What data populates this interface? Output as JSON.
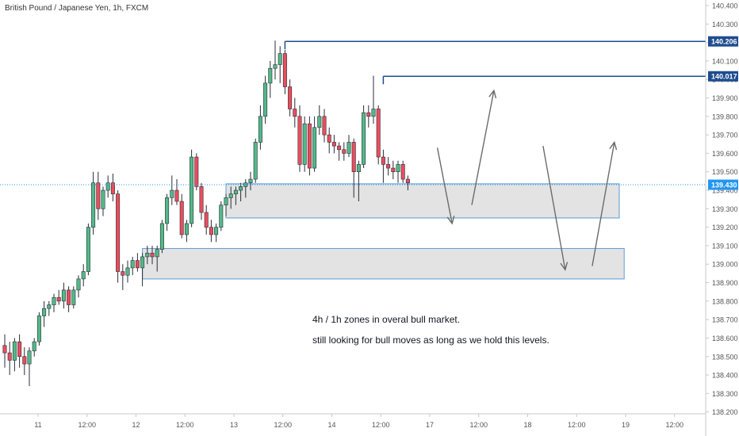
{
  "title": "British Pound / Japanese Yen, 1h, FXCM",
  "colors": {
    "up": "#53b987",
    "down": "#eb4d5c",
    "wick": "#2a2e39",
    "zone_fill": "#dadada",
    "zone_border": "#5b9bd5",
    "level_line": "#1e4c8f",
    "current_line": "#2196f3",
    "current_tag": "#2196f3",
    "arrow": "#6b6b6b",
    "axis_text": "#555555",
    "axis_line": "#c8c8c8"
  },
  "notes": {
    "line1": "4h / 1h zones in overal bull market.",
    "line2": "still looking for bull moves as long as we hold this levels."
  },
  "chart_data": {
    "type": "candlestick",
    "instrument": "British Pound / Japanese Yen",
    "timeframe": "1h",
    "source": "FXCM",
    "ylim": [
      138.19,
      140.43
    ],
    "y_ticks": [
      "140.400",
      "140.300",
      "140.200",
      "140.100",
      "140.000",
      "139.900",
      "139.800",
      "139.700",
      "139.600",
      "139.500",
      "139.400",
      "139.300",
      "139.200",
      "139.100",
      "139.000",
      "138.900",
      "138.800",
      "138.700",
      "138.600",
      "138.500",
      "138.400",
      "138.300",
      "138.200"
    ],
    "x_ticks": [
      "11",
      "12:00",
      "12",
      "12:00",
      "13",
      "12:00",
      "14",
      "12:00",
      "17",
      "12:00",
      "18",
      "12:00",
      "19",
      "12:00"
    ],
    "levels": [
      {
        "price": 140.206,
        "label": "140.206"
      },
      {
        "price": 140.017,
        "label": "140.017"
      }
    ],
    "current_price": {
      "price": 139.43,
      "label": "139.430"
    },
    "zones": [
      {
        "from_bar": 45,
        "to_bar": 125,
        "low": 139.25,
        "high": 139.435
      },
      {
        "from_bar": 28,
        "to_bar": 126,
        "low": 138.92,
        "high": 139.085
      }
    ],
    "projection_arrows": [
      {
        "from": [
          88,
          139.63
        ],
        "to": [
          91,
          139.22
        ]
      },
      {
        "from": [
          95,
          139.32
        ],
        "to": [
          99.5,
          139.94
        ]
      },
      {
        "from": [
          109.5,
          139.64
        ],
        "to": [
          114,
          138.97
        ]
      },
      {
        "from": [
          119.5,
          138.99
        ],
        "to": [
          124,
          139.66
        ]
      }
    ],
    "candles": [
      [
        138.56,
        138.62,
        138.44,
        138.52
      ],
      [
        138.52,
        138.58,
        138.4,
        138.48
      ],
      [
        138.48,
        138.6,
        138.42,
        138.58
      ],
      [
        138.58,
        138.62,
        138.44,
        138.5
      ],
      [
        138.5,
        138.55,
        138.4,
        138.46
      ],
      [
        138.46,
        138.55,
        138.34,
        138.53
      ],
      [
        138.53,
        138.6,
        138.5,
        138.58
      ],
      [
        138.58,
        138.74,
        138.56,
        138.72
      ],
      [
        138.72,
        138.8,
        138.66,
        138.76
      ],
      [
        138.76,
        138.8,
        138.72,
        138.78
      ],
      [
        138.78,
        138.84,
        138.74,
        138.82
      ],
      [
        138.82,
        138.86,
        138.78,
        138.8
      ],
      [
        138.8,
        138.9,
        138.76,
        138.86
      ],
      [
        138.86,
        138.88,
        138.74,
        138.78
      ],
      [
        138.78,
        138.88,
        138.76,
        138.86
      ],
      [
        138.86,
        138.94,
        138.82,
        138.92
      ],
      [
        138.92,
        139.0,
        138.88,
        138.96
      ],
      [
        138.96,
        139.22,
        138.94,
        139.2
      ],
      [
        139.2,
        139.5,
        139.16,
        139.44
      ],
      [
        139.44,
        139.5,
        139.24,
        139.3
      ],
      [
        139.3,
        139.42,
        139.26,
        139.4
      ],
      [
        139.4,
        139.48,
        139.36,
        139.44
      ],
      [
        139.44,
        139.49,
        139.34,
        139.38
      ],
      [
        139.38,
        139.4,
        138.9,
        138.96
      ],
      [
        138.96,
        139.0,
        138.86,
        138.94
      ],
      [
        138.94,
        139.02,
        138.9,
        138.98
      ],
      [
        138.98,
        139.04,
        138.94,
        139.02
      ],
      [
        139.02,
        139.06,
        138.96,
        138.98
      ],
      [
        138.98,
        139.06,
        138.88,
        139.04
      ],
      [
        139.04,
        139.1,
        139.0,
        139.06
      ],
      [
        139.06,
        139.1,
        139.0,
        139.04
      ],
      [
        139.04,
        139.1,
        138.96,
        139.08
      ],
      [
        139.08,
        139.24,
        139.06,
        139.22
      ],
      [
        139.22,
        139.38,
        139.18,
        139.36
      ],
      [
        139.36,
        139.48,
        139.32,
        139.4
      ],
      [
        139.4,
        139.46,
        139.32,
        139.34
      ],
      [
        139.34,
        139.38,
        139.14,
        139.16
      ],
      [
        139.16,
        139.24,
        139.12,
        139.22
      ],
      [
        139.22,
        139.62,
        139.2,
        139.58
      ],
      [
        139.58,
        139.6,
        139.4,
        139.42
      ],
      [
        139.42,
        139.44,
        139.24,
        139.28
      ],
      [
        139.28,
        139.32,
        139.16,
        139.2
      ],
      [
        139.2,
        139.24,
        139.12,
        139.16
      ],
      [
        139.16,
        139.22,
        139.12,
        139.2
      ],
      [
        139.2,
        139.34,
        139.18,
        139.32
      ],
      [
        139.32,
        139.38,
        139.26,
        139.36
      ],
      [
        139.36,
        139.42,
        139.3,
        139.38
      ],
      [
        139.38,
        139.42,
        139.32,
        139.4
      ],
      [
        139.4,
        139.44,
        139.34,
        139.42
      ],
      [
        139.42,
        139.46,
        139.36,
        139.44
      ],
      [
        139.44,
        139.5,
        139.4,
        139.46
      ],
      [
        139.46,
        139.68,
        139.44,
        139.66
      ],
      [
        139.66,
        139.86,
        139.62,
        139.8
      ],
      [
        139.8,
        140.02,
        139.76,
        139.98
      ],
      [
        139.98,
        140.1,
        139.9,
        140.06
      ],
      [
        140.06,
        140.21,
        140.0,
        140.08
      ],
      [
        140.08,
        140.18,
        139.98,
        140.14
      ],
      [
        140.14,
        140.16,
        139.92,
        139.96
      ],
      [
        139.96,
        140.0,
        139.8,
        139.84
      ],
      [
        139.84,
        139.9,
        139.74,
        139.8
      ],
      [
        139.8,
        139.86,
        139.5,
        139.54
      ],
      [
        139.54,
        139.8,
        139.5,
        139.76
      ],
      [
        139.76,
        139.8,
        139.48,
        139.52
      ],
      [
        139.52,
        139.8,
        139.5,
        139.74
      ],
      [
        139.74,
        139.86,
        139.7,
        139.8
      ],
      [
        139.8,
        139.84,
        139.66,
        139.7
      ],
      [
        139.7,
        139.74,
        139.6,
        139.66
      ],
      [
        139.66,
        139.7,
        139.6,
        139.64
      ],
      [
        139.64,
        139.66,
        139.56,
        139.62
      ],
      [
        139.62,
        139.66,
        139.56,
        139.6
      ],
      [
        139.6,
        139.7,
        139.58,
        139.66
      ],
      [
        139.66,
        139.68,
        139.36,
        139.5
      ],
      [
        139.5,
        139.56,
        139.34,
        139.54
      ],
      [
        139.54,
        139.86,
        139.52,
        139.82
      ],
      [
        139.82,
        139.86,
        139.74,
        139.8
      ],
      [
        139.8,
        140.02,
        139.76,
        139.84
      ],
      [
        139.84,
        139.86,
        139.54,
        139.58
      ],
      [
        139.58,
        139.62,
        139.44,
        139.54
      ],
      [
        139.54,
        139.58,
        139.48,
        139.52
      ],
      [
        139.52,
        139.56,
        139.46,
        139.5
      ],
      [
        139.5,
        139.56,
        139.44,
        139.54
      ],
      [
        139.54,
        139.56,
        139.44,
        139.46
      ],
      [
        139.46,
        139.48,
        139.4,
        139.44
      ]
    ]
  }
}
